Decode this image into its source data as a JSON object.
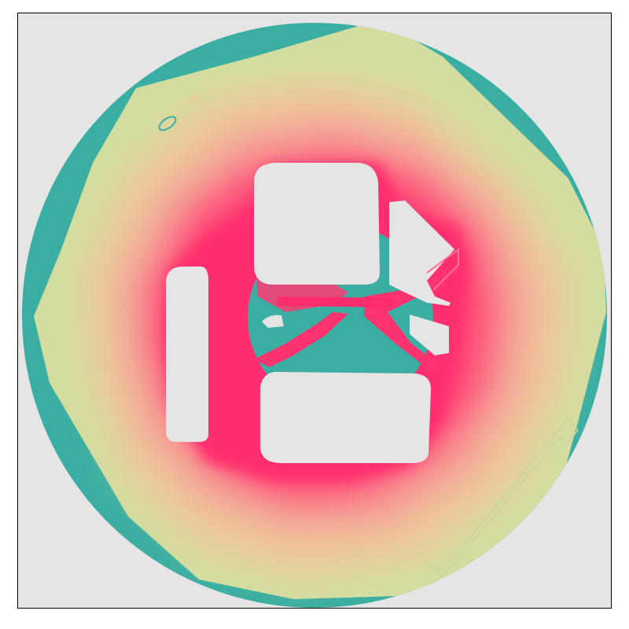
{
  "colors": {
    "background": "#e5e5e5",
    "border": "#000000",
    "far": "#3aaea2",
    "mid": "#d6dc9e",
    "warm": "#f0a89a",
    "near": "#ff2d6e",
    "obstacle": "#e5e5e5"
  },
  "field": {
    "gradient_stops": [
      {
        "distance": 0.0,
        "color": "#ff2a6d"
      },
      {
        "distance": 0.18,
        "color": "#ff3c72"
      },
      {
        "distance": 0.38,
        "color": "#f59c94"
      },
      {
        "distance": 0.58,
        "color": "#ecc79c"
      },
      {
        "distance": 0.75,
        "color": "#d8df9f"
      },
      {
        "distance": 0.86,
        "color": "#a8cf9c"
      },
      {
        "distance": 1.0,
        "color": "#3aaea2"
      }
    ]
  }
}
